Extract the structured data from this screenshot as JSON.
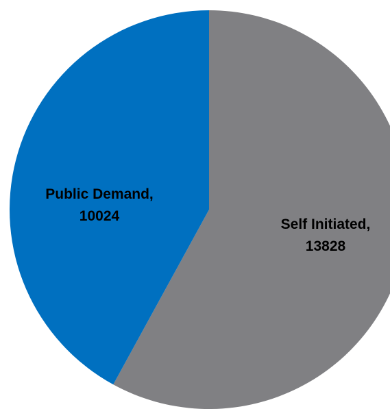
{
  "chart_data": {
    "type": "pie",
    "title": "",
    "start_angle_deg": 0,
    "direction": "clockwise",
    "slices": [
      {
        "label": "Self Initiated",
        "value": 13828,
        "color": "#808083",
        "label_text": "Self Initiated,",
        "value_text": "13828"
      },
      {
        "label": "Public Demand",
        "value": 10024,
        "color": "#0070c0",
        "label_text": "Public Demand,",
        "value_text": "10024"
      }
    ],
    "legend": "none"
  }
}
